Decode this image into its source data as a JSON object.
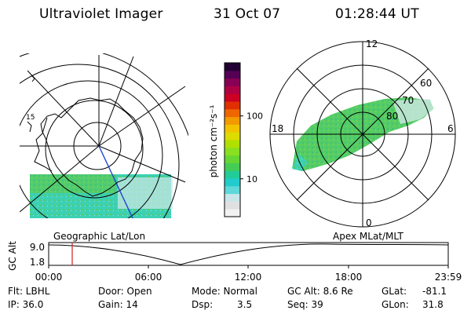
{
  "header": {
    "title": "Ultraviolet Imager",
    "date": "31 Oct 07",
    "time": "01:28:44 UT"
  },
  "left_map": {
    "label": "Geographic Lat/Lon",
    "coast_labels": [
      "15"
    ]
  },
  "right_map": {
    "label": "Apex MLat/MLT",
    "mlt_labels": [
      "12",
      "18",
      "6",
      "0"
    ],
    "mlat_labels": [
      "60",
      "70",
      "80"
    ]
  },
  "colorbar": {
    "unit_label": "photon cm⁻²s⁻¹",
    "ticks": [
      {
        "value": 10,
        "label": "10"
      },
      {
        "value": 100,
        "label": "100"
      }
    ],
    "min": 2.5,
    "max": 700,
    "colors": [
      "#f2f2f2",
      "#e0e0e0",
      "#c8e6ea",
      "#5ed8d8",
      "#22cccc",
      "#22cc99",
      "#44cc55",
      "#66d633",
      "#88e020",
      "#b0e000",
      "#dcdc00",
      "#f2c400",
      "#f29a00",
      "#ee6600",
      "#e03000",
      "#cc0022",
      "#b00044",
      "#880055",
      "#550055",
      "#220033"
    ]
  },
  "timeline": {
    "y_label": "GC Alt",
    "y_ticks": [
      "9.0",
      "1.8"
    ],
    "x_ticks": [
      "00:00",
      "06:00",
      "12:00",
      "18:00",
      "23:59"
    ],
    "marker_time": "01:28:44"
  },
  "info": {
    "flt": "Flt: LBHL",
    "ip": "IP: 36.0",
    "door": "Door: Open",
    "gain": "Gain: 14",
    "mode": "Mode: Normal",
    "dsp_label": "Dsp:",
    "dsp_value": "3.5",
    "gc_alt": "GC Alt: 8.6 Re",
    "seq": "Seq: 39",
    "glat_label": "GLat:",
    "glat_value": "-81.1",
    "glon_label": "GLon:",
    "glon_value": "31.8"
  },
  "colors": {
    "marker": "#cc2222",
    "aurora_green": "#55cc66",
    "aurora_cyan": "#2ed0c0",
    "meridian": "#2244cc"
  }
}
